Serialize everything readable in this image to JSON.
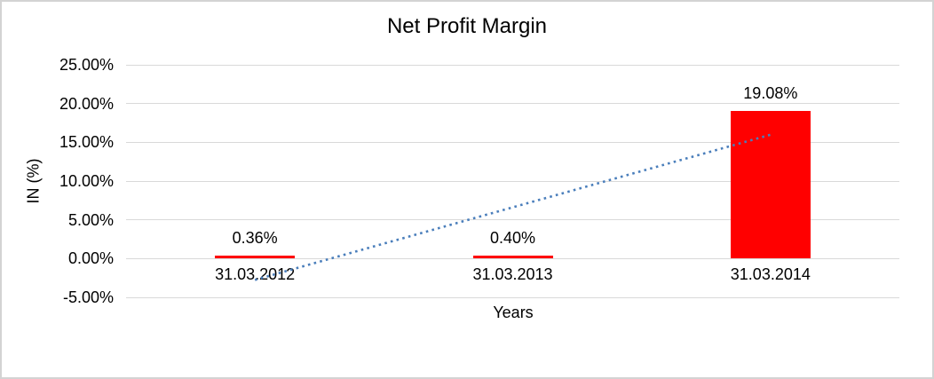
{
  "window": {
    "background_color": "#ffffff",
    "border_color": "#d3d3d3"
  },
  "chart_data": {
    "type": "bar",
    "title": "Net Profit Margin",
    "xlabel": "Years",
    "ylabel": "IN (%)",
    "categories": [
      "31.03.2012",
      "31.03.2013",
      "31.03.2014"
    ],
    "values": [
      0.36,
      0.4,
      19.08
    ],
    "data_labels": [
      "0.36%",
      "0.40%",
      "19.08%"
    ],
    "bar_color": "#ff0000",
    "ylim": [
      -5,
      25
    ],
    "y_ticks": [
      {
        "label": "25.00%",
        "value": 25
      },
      {
        "label": "20.00%",
        "value": 20
      },
      {
        "label": "15.00%",
        "value": 15
      },
      {
        "label": "10.00%",
        "value": 10
      },
      {
        "label": "5.00%",
        "value": 5
      },
      {
        "label": "0.00%",
        "value": 0
      },
      {
        "label": "-5.00%",
        "value": -5
      }
    ],
    "grid": true,
    "gridline_color": "#d9d9d9",
    "legend": "none",
    "trendline": {
      "type": "linear",
      "style": "dotted",
      "color": "#4a7ebb"
    },
    "text_color": "#000000"
  }
}
